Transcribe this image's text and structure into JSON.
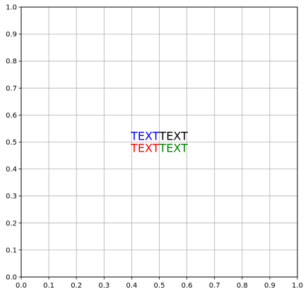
{
  "chart_data": {
    "type": "scatter",
    "title": "",
    "xlabel": "",
    "ylabel": "",
    "xlim": [
      0,
      1
    ],
    "ylim": [
      0,
      1
    ],
    "grid": true,
    "x_ticks": [
      "0.0",
      "0.1",
      "0.2",
      "0.3",
      "0.4",
      "0.5",
      "0.6",
      "0.7",
      "0.8",
      "0.9",
      "1.0"
    ],
    "y_ticks": [
      "0.0",
      "0.1",
      "0.2",
      "0.3",
      "0.4",
      "0.5",
      "0.6",
      "0.7",
      "0.8",
      "0.9",
      "1.0"
    ],
    "annotations": [
      {
        "text": "TEXT",
        "x": 0.5,
        "y": 0.5,
        "ha": "right",
        "va": "bottom",
        "color": "#0000ff"
      },
      {
        "text": "TEXT",
        "x": 0.5,
        "y": 0.5,
        "ha": "left",
        "va": "bottom",
        "color": "#000000"
      },
      {
        "text": "TEXT",
        "x": 0.5,
        "y": 0.5,
        "ha": "right",
        "va": "top",
        "color": "#ff0000"
      },
      {
        "text": "TEXT",
        "x": 0.5,
        "y": 0.5,
        "ha": "left",
        "va": "top",
        "color": "#008000"
      }
    ],
    "colors": {
      "grid": "#b0b0b0",
      "axes": "#000000"
    }
  }
}
